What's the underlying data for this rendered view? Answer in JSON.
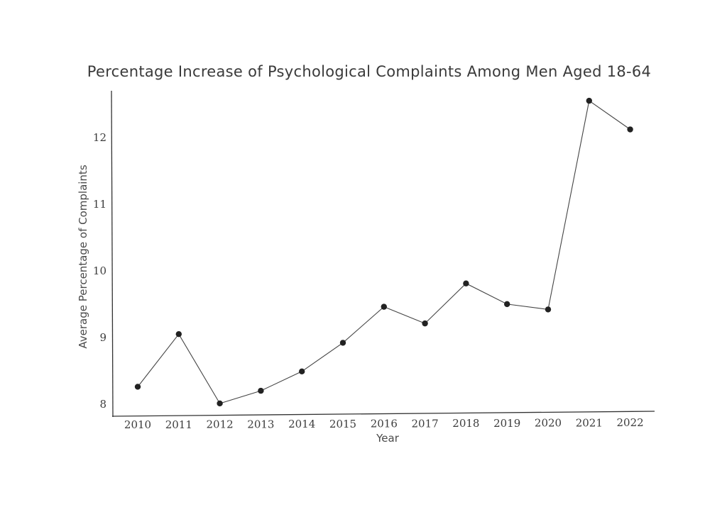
{
  "chart_data": {
    "type": "line",
    "title": "Percentage Increase of Psychological Complaints Among Men Aged 18-64",
    "xlabel": "Year",
    "ylabel": "Average Percentage of Complaints",
    "x": [
      "2010",
      "2011",
      "2012",
      "2013",
      "2014",
      "2015",
      "2016",
      "2017",
      "2018",
      "2019",
      "2020",
      "2021",
      "2022"
    ],
    "y_ticks": [
      "8",
      "9",
      "10",
      "11",
      "12"
    ],
    "ylim": [
      7.85,
      12.7
    ],
    "series": [
      {
        "values": [
          8.26,
          9.05,
          8.01,
          8.2,
          8.49,
          8.92,
          9.46,
          9.21,
          9.81,
          9.5,
          9.42,
          12.55,
          12.12
        ]
      }
    ],
    "grid": false,
    "colors": {
      "line": "#444444",
      "marker": "#222222",
      "axis": "#333333"
    }
  }
}
